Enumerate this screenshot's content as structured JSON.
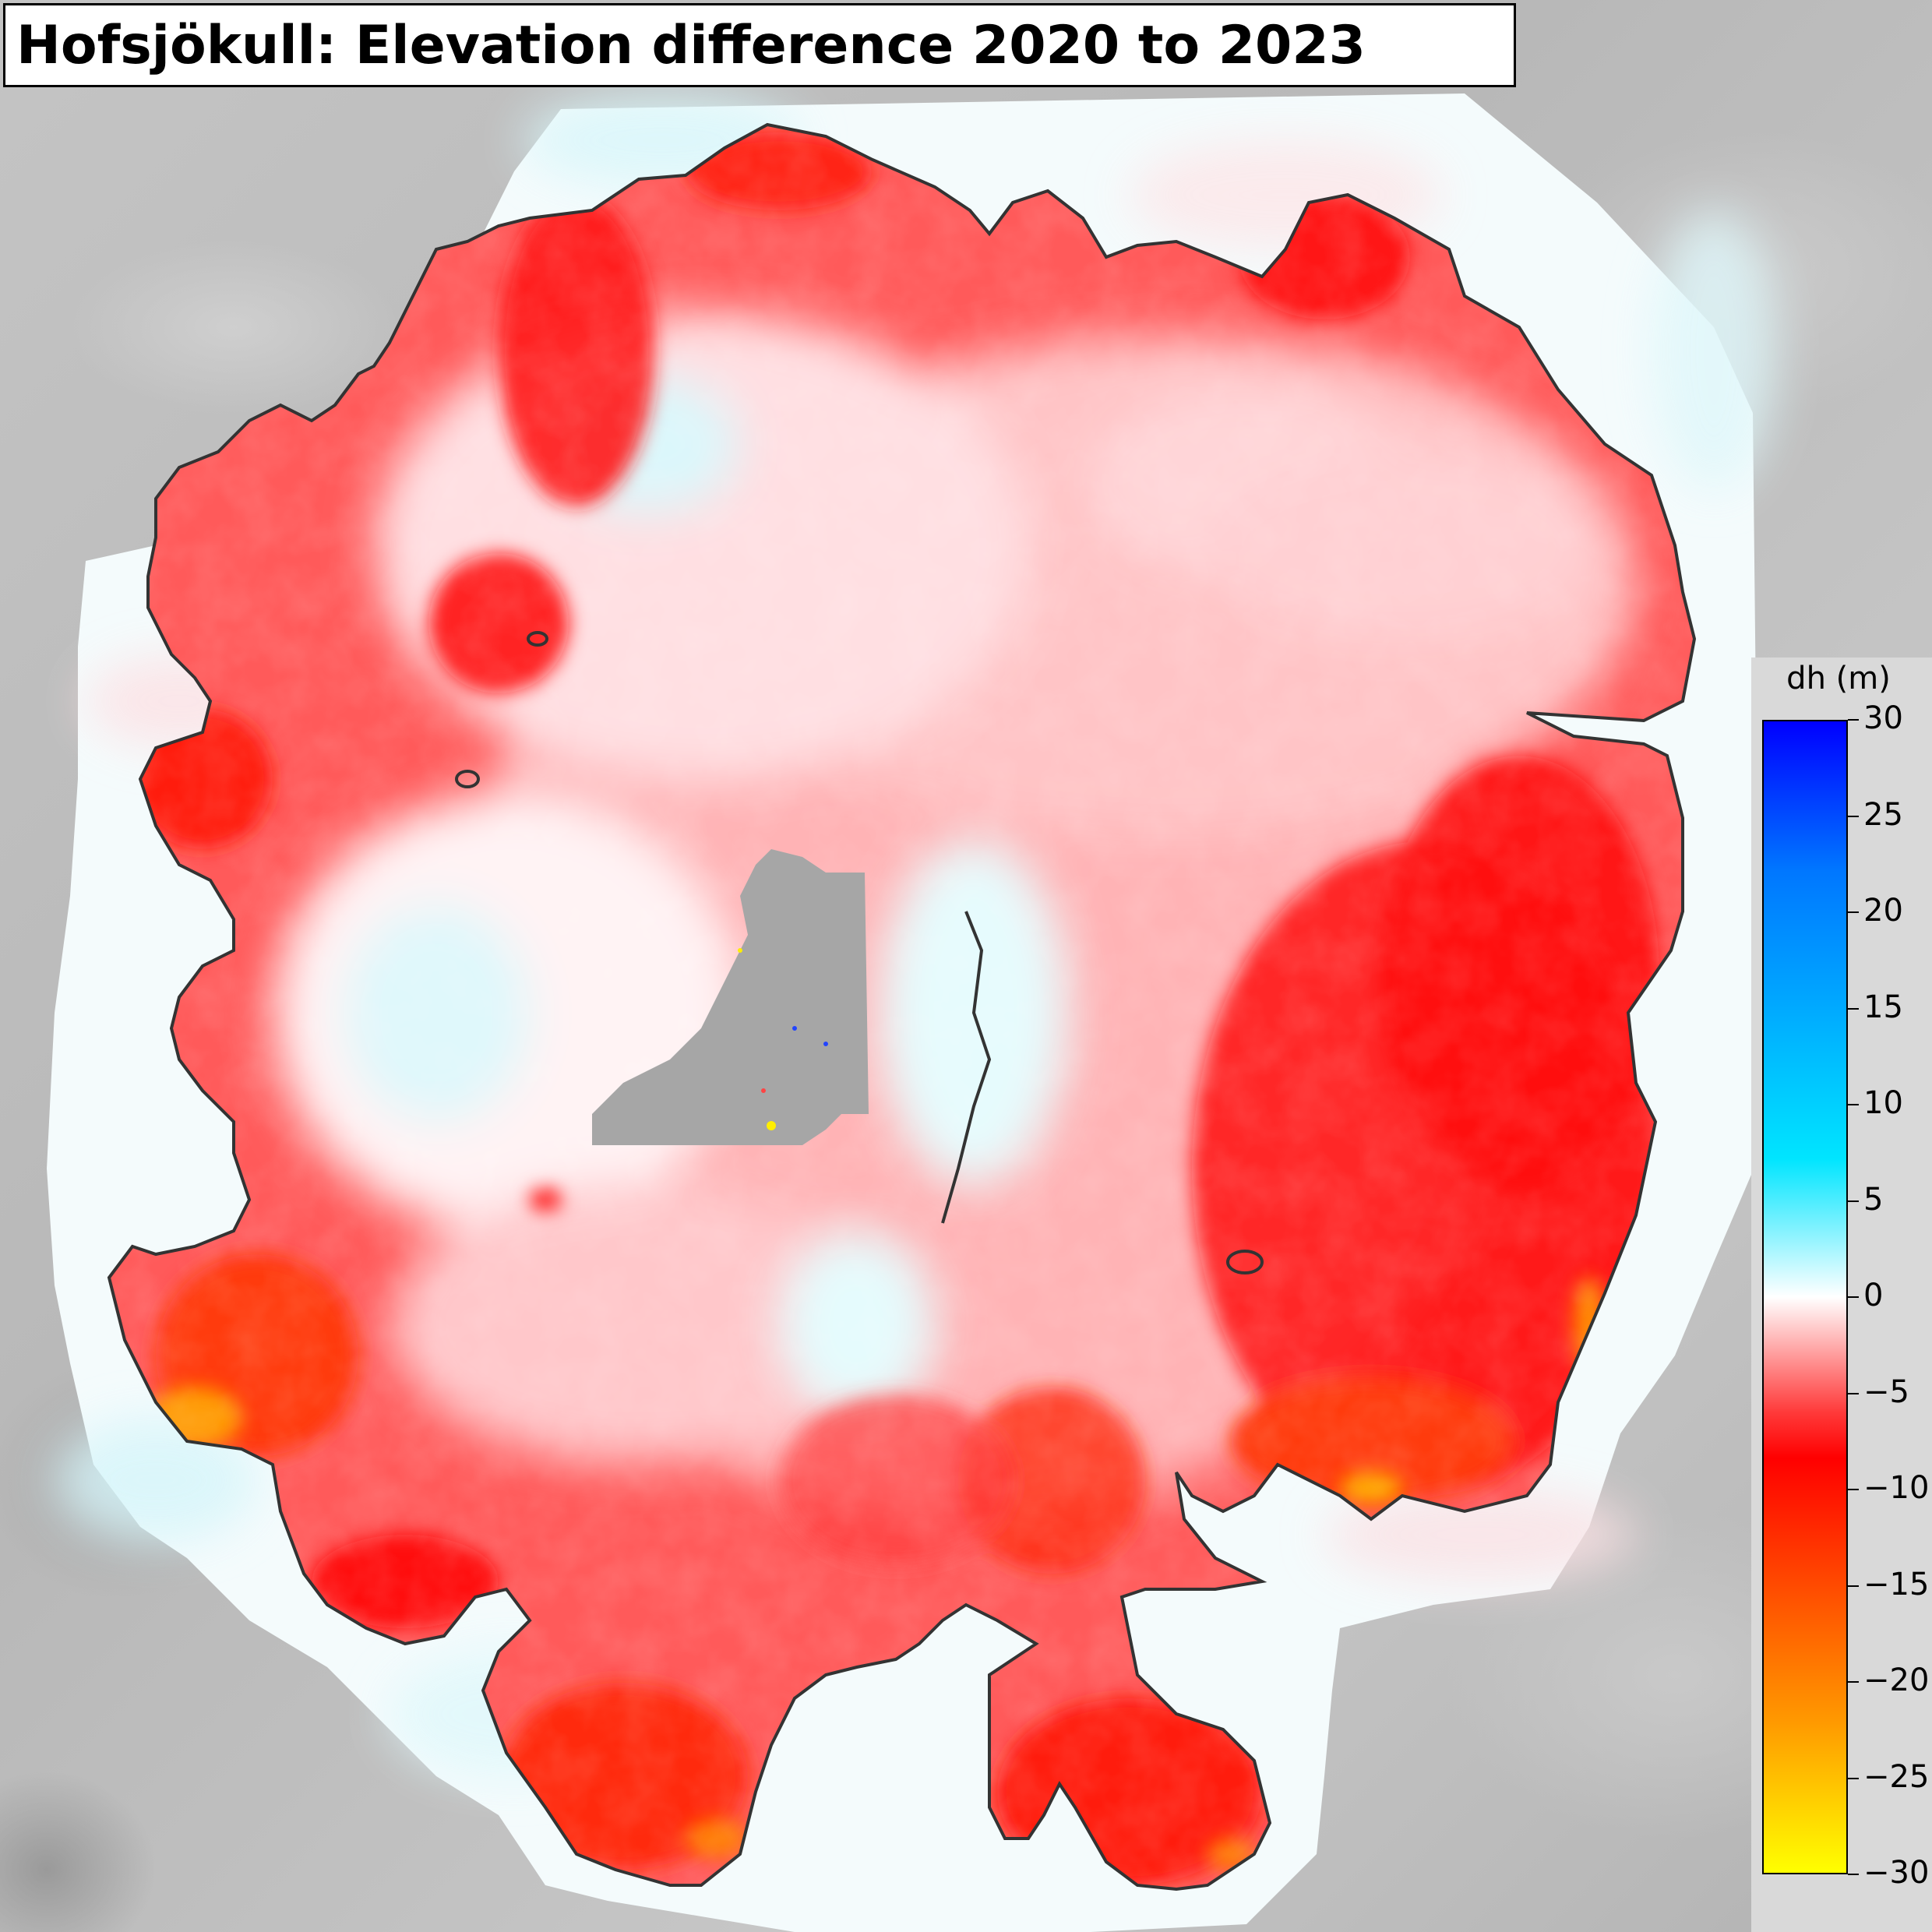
{
  "title": "Hofsjökull: Elevation difference 2020 to 2023",
  "colorbar": {
    "label": "dh (m)",
    "ticks": [
      "30",
      "25",
      "20",
      "15",
      "10",
      "5",
      "0",
      "−5",
      "−10",
      "−15",
      "−20",
      "−25",
      "−30"
    ],
    "range": [
      -30,
      30
    ],
    "colors": [
      "#0000ff",
      "#0077ff",
      "#00aaff",
      "#00e5ff",
      "#ffffff",
      "#ff0000",
      "#ff4a00",
      "#ff9a00",
      "#ffff00"
    ]
  }
}
